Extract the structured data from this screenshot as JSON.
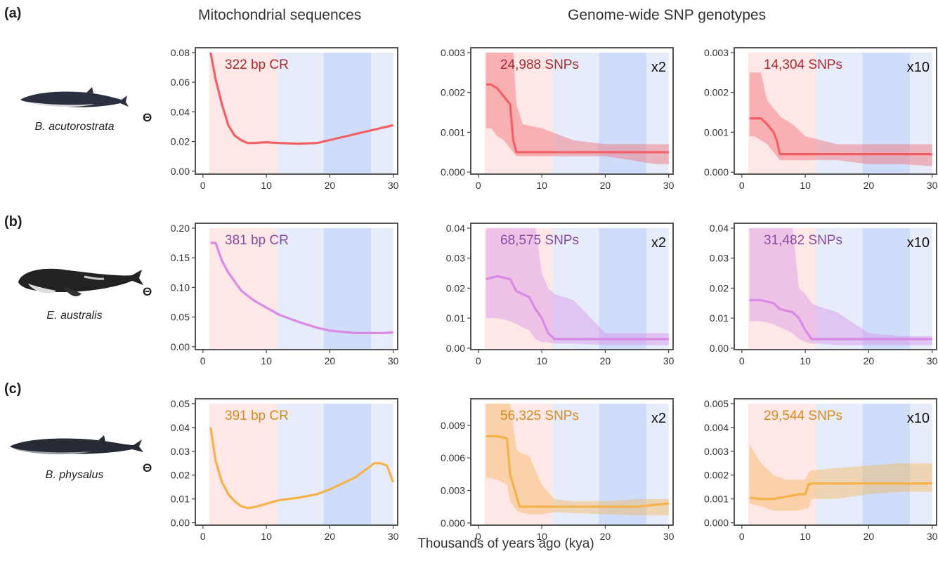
{
  "column_titles": {
    "mito": "Mitochondrial sequences",
    "snp": "Genome-wide SNP genotypes"
  },
  "xlabel": "Thousands of years ago (kya)",
  "theta_symbol": "Θ",
  "colors": {
    "red": "#f26065",
    "red_text": "#a82a2e",
    "purple": "#d88ae6",
    "purple_text": "#8a4ca0",
    "orange": "#f5b24b",
    "orange_text": "#d68b1f",
    "band_pink": "#fde7e7",
    "band_lightblue": "#e7ecfa",
    "band_blue": "#cfdcfa"
  },
  "rows": [
    {
      "label": "(a)",
      "species": "B. acutorostrata",
      "whale_icon": "minke-whale-icon",
      "color_key": "red"
    },
    {
      "label": "(b)",
      "species": "E. australis",
      "whale_icon": "right-whale-icon",
      "color_key": "purple"
    },
    {
      "label": "(c)",
      "species": "B. physalus",
      "whale_icon": "fin-whale-icon",
      "color_key": "orange"
    }
  ],
  "chart_data": [
    {
      "type": "line",
      "id": "a-mito",
      "annotation": "322 bp CR",
      "multiplier": "",
      "xlim": [
        0,
        30
      ],
      "ylim": [
        -0.002,
        0.08
      ],
      "xticks": [
        0,
        10,
        20,
        30
      ],
      "yticks": [
        0,
        0.02,
        0.04,
        0.06,
        0.08
      ],
      "ytick_labels": [
        "0.00",
        "0.02",
        "0.04",
        "0.06",
        "0.08"
      ],
      "x": [
        1.2,
        2,
        3,
        4,
        5,
        6,
        7,
        8,
        10,
        12,
        15,
        18,
        20,
        24,
        28,
        30
      ],
      "y": [
        0.08,
        0.062,
        0.045,
        0.031,
        0.024,
        0.021,
        0.019,
        0.019,
        0.0195,
        0.019,
        0.0185,
        0.019,
        0.021,
        0.025,
        0.029,
        0.031
      ],
      "band_low": [],
      "band_high": []
    },
    {
      "type": "line",
      "id": "a-snp2",
      "annotation": "24,988 SNPs",
      "multiplier": "x2",
      "xlim": [
        0,
        30
      ],
      "ylim": [
        -5e-05,
        0.003
      ],
      "xticks": [
        0,
        10,
        20,
        30
      ],
      "yticks": [
        0,
        0.001,
        0.002,
        0.003
      ],
      "ytick_labels": [
        "0.000",
        "0.001",
        "0.002",
        "0.003"
      ],
      "x": [
        1.2,
        2,
        3,
        4,
        5,
        5.5,
        6,
        7,
        10,
        15,
        20,
        24,
        28,
        30
      ],
      "y": [
        0.0022,
        0.0022,
        0.0021,
        0.0019,
        0.0017,
        0.0008,
        0.0005,
        0.0005,
        0.0005,
        0.0005,
        0.0005,
        0.0005,
        0.0005,
        0.0005
      ],
      "band_low": [
        0.0011,
        0.0011,
        0.0009,
        0.0008,
        0.0006,
        0.0005,
        0.0004,
        0.0004,
        0.0004,
        0.0004,
        0.0004,
        0.0003,
        0.0002,
        0.0002
      ],
      "band_high": [
        0.003,
        0.003,
        0.003,
        0.003,
        0.003,
        0.003,
        0.0017,
        0.0012,
        0.0011,
        0.0008,
        0.0007,
        0.0007,
        0.0007,
        0.0007
      ]
    },
    {
      "type": "line",
      "id": "a-snp10",
      "annotation": "14,304 SNPs",
      "multiplier": "x10",
      "xlim": [
        0,
        30
      ],
      "ylim": [
        -5e-05,
        0.003
      ],
      "xticks": [
        0,
        10,
        20,
        30
      ],
      "yticks": [
        0,
        0.001,
        0.002,
        0.003
      ],
      "ytick_labels": [
        "0.000",
        "0.001",
        "0.002",
        "0.003"
      ],
      "x": [
        1.2,
        2,
        3,
        4,
        5,
        5.5,
        6,
        8,
        10,
        15,
        20,
        25,
        30
      ],
      "y": [
        0.00135,
        0.00135,
        0.00135,
        0.0012,
        0.001,
        0.0008,
        0.00045,
        0.00045,
        0.00045,
        0.00045,
        0.00045,
        0.00045,
        0.00045
      ],
      "band_low": [
        0.0009,
        0.0009,
        0.0008,
        0.0007,
        0.0005,
        0.0004,
        0.0003,
        0.0003,
        0.0003,
        0.0003,
        0.0002,
        0.0002,
        0.00015
      ],
      "band_high": [
        0.0025,
        0.0025,
        0.0025,
        0.0018,
        0.0016,
        0.0015,
        0.0014,
        0.0012,
        0.0009,
        0.0007,
        0.0007,
        0.0007,
        0.0007
      ]
    },
    {
      "type": "line",
      "id": "b-mito",
      "annotation": "381 bp CR",
      "multiplier": "",
      "xlim": [
        0,
        30
      ],
      "ylim": [
        -0.005,
        0.2
      ],
      "xticks": [
        0,
        10,
        20,
        30
      ],
      "yticks": [
        0,
        0.05,
        0.1,
        0.15,
        0.2
      ],
      "ytick_labels": [
        "0.00",
        "0.05",
        "0.10",
        "0.15",
        "0.20"
      ],
      "x": [
        1.2,
        2,
        3,
        4,
        6,
        8,
        10,
        12,
        15,
        18,
        20,
        24,
        28,
        30
      ],
      "y": [
        0.175,
        0.175,
        0.145,
        0.125,
        0.095,
        0.078,
        0.066,
        0.054,
        0.042,
        0.032,
        0.027,
        0.023,
        0.023,
        0.024
      ],
      "band_low": [],
      "band_high": []
    },
    {
      "type": "line",
      "id": "b-snp2",
      "annotation": "68,575 SNPs",
      "multiplier": "x2",
      "xlim": [
        0,
        30
      ],
      "ylim": [
        -0.0005,
        0.04
      ],
      "xticks": [
        0,
        10,
        20,
        30
      ],
      "yticks": [
        0,
        0.01,
        0.02,
        0.03,
        0.04
      ],
      "ytick_labels": [
        "0.00",
        "0.01",
        "0.02",
        "0.03",
        "0.04"
      ],
      "x": [
        1.2,
        3,
        5,
        6,
        8,
        9,
        10,
        11,
        12,
        15,
        20,
        25,
        30
      ],
      "y": [
        0.023,
        0.024,
        0.023,
        0.019,
        0.017,
        0.013,
        0.01,
        0.005,
        0.003,
        0.003,
        0.003,
        0.003,
        0.003
      ],
      "band_low": [
        0.01,
        0.01,
        0.009,
        0.008,
        0.006,
        0.003,
        0.002,
        0.002,
        0.0015,
        0.0015,
        0.001,
        0.001,
        0.001
      ],
      "band_high": [
        0.04,
        0.04,
        0.04,
        0.04,
        0.04,
        0.04,
        0.025,
        0.02,
        0.018,
        0.016,
        0.005,
        0.005,
        0.005
      ]
    },
    {
      "type": "line",
      "id": "b-snp10",
      "annotation": "31,482 SNPs",
      "multiplier": "x10",
      "xlim": [
        0,
        30
      ],
      "ylim": [
        -0.0005,
        0.04
      ],
      "xticks": [
        0,
        10,
        20,
        30
      ],
      "yticks": [
        0,
        0.01,
        0.02,
        0.03,
        0.04
      ],
      "ytick_labels": [
        "0.00",
        "0.01",
        "0.02",
        "0.03",
        "0.04"
      ],
      "x": [
        1.2,
        3,
        5,
        6,
        8,
        9,
        10,
        11,
        12,
        15,
        20,
        25,
        30
      ],
      "y": [
        0.016,
        0.016,
        0.015,
        0.013,
        0.012,
        0.01,
        0.006,
        0.003,
        0.003,
        0.003,
        0.003,
        0.003,
        0.003
      ],
      "band_low": [
        0.009,
        0.009,
        0.008,
        0.007,
        0.005,
        0.003,
        0.002,
        0.0015,
        0.0015,
        0.001,
        0.001,
        0.001,
        0.001
      ],
      "band_high": [
        0.04,
        0.04,
        0.04,
        0.04,
        0.04,
        0.02,
        0.018,
        0.015,
        0.014,
        0.012,
        0.005,
        0.004,
        0.004
      ]
    },
    {
      "type": "line",
      "id": "c-mito",
      "annotation": "391 bp CR",
      "multiplier": "",
      "xlim": [
        0,
        30
      ],
      "ylim": [
        -0.001,
        0.05
      ],
      "xticks": [
        0,
        10,
        20,
        30
      ],
      "yticks": [
        0,
        0.01,
        0.02,
        0.03,
        0.04,
        0.05
      ],
      "ytick_labels": [
        "0.00",
        "0.01",
        "0.02",
        "0.03",
        "0.04",
        "0.05"
      ],
      "x": [
        1.2,
        2,
        3,
        4,
        5,
        6,
        7,
        8,
        10,
        12,
        15,
        18,
        20,
        24,
        26,
        27,
        28,
        29,
        30
      ],
      "y": [
        0.04,
        0.026,
        0.017,
        0.012,
        0.009,
        0.007,
        0.0062,
        0.0065,
        0.008,
        0.0095,
        0.0105,
        0.012,
        0.014,
        0.019,
        0.023,
        0.025,
        0.025,
        0.024,
        0.017
      ],
      "band_low": [],
      "band_high": []
    },
    {
      "type": "line",
      "id": "c-snp2",
      "annotation": "56,325 SNPs",
      "multiplier": "x2",
      "xlim": [
        0,
        30
      ],
      "ylim": [
        -0.0002,
        0.011
      ],
      "xticks": [
        0,
        10,
        20,
        30
      ],
      "yticks": [
        0,
        0.003,
        0.006,
        0.009
      ],
      "ytick_labels": [
        "0.000",
        "0.003",
        "0.006",
        "0.009"
      ],
      "x": [
        1.2,
        3,
        4.5,
        5,
        6,
        6.5,
        8,
        10,
        12,
        15,
        20,
        25,
        30
      ],
      "y": [
        0.008,
        0.008,
        0.0078,
        0.0045,
        0.0025,
        0.0015,
        0.0015,
        0.0015,
        0.0015,
        0.0015,
        0.0015,
        0.0015,
        0.0018
      ],
      "band_low": [
        0.0042,
        0.004,
        0.0035,
        0.002,
        0.0012,
        0.001,
        0.0008,
        0.0008,
        0.001,
        0.0009,
        0.0008,
        0.0007,
        0.0007
      ],
      "band_high": [
        0.011,
        0.011,
        0.011,
        0.011,
        0.0068,
        0.0065,
        0.0062,
        0.0035,
        0.0022,
        0.002,
        0.002,
        0.0022,
        0.0022
      ]
    },
    {
      "type": "line",
      "id": "c-snp10",
      "annotation": "29,544 SNPs",
      "multiplier": "x10",
      "xlim": [
        0,
        30
      ],
      "ylim": [
        -0.0001,
        0.005
      ],
      "xticks": [
        0,
        10,
        20,
        30
      ],
      "yticks": [
        0,
        0.001,
        0.002,
        0.003,
        0.004,
        0.005
      ],
      "ytick_labels": [
        "0.000",
        "0.001",
        "0.002",
        "0.003",
        "0.004",
        "0.005"
      ],
      "x": [
        1.2,
        3,
        5,
        7,
        9,
        10,
        10.5,
        11,
        15,
        20,
        25,
        30
      ],
      "y": [
        0.00105,
        0.001,
        0.001,
        0.0011,
        0.0012,
        0.0012,
        0.0016,
        0.00165,
        0.00165,
        0.00165,
        0.00165,
        0.00165
      ],
      "band_low": [
        0.0008,
        0.0007,
        0.0005,
        0.0005,
        0.0005,
        0.0006,
        0.0006,
        0.001,
        0.001,
        0.0012,
        0.0013,
        0.0013
      ],
      "band_high": [
        0.0033,
        0.0025,
        0.002,
        0.0018,
        0.0018,
        0.0018,
        0.0021,
        0.0022,
        0.0023,
        0.0024,
        0.0025,
        0.0025
      ]
    }
  ]
}
